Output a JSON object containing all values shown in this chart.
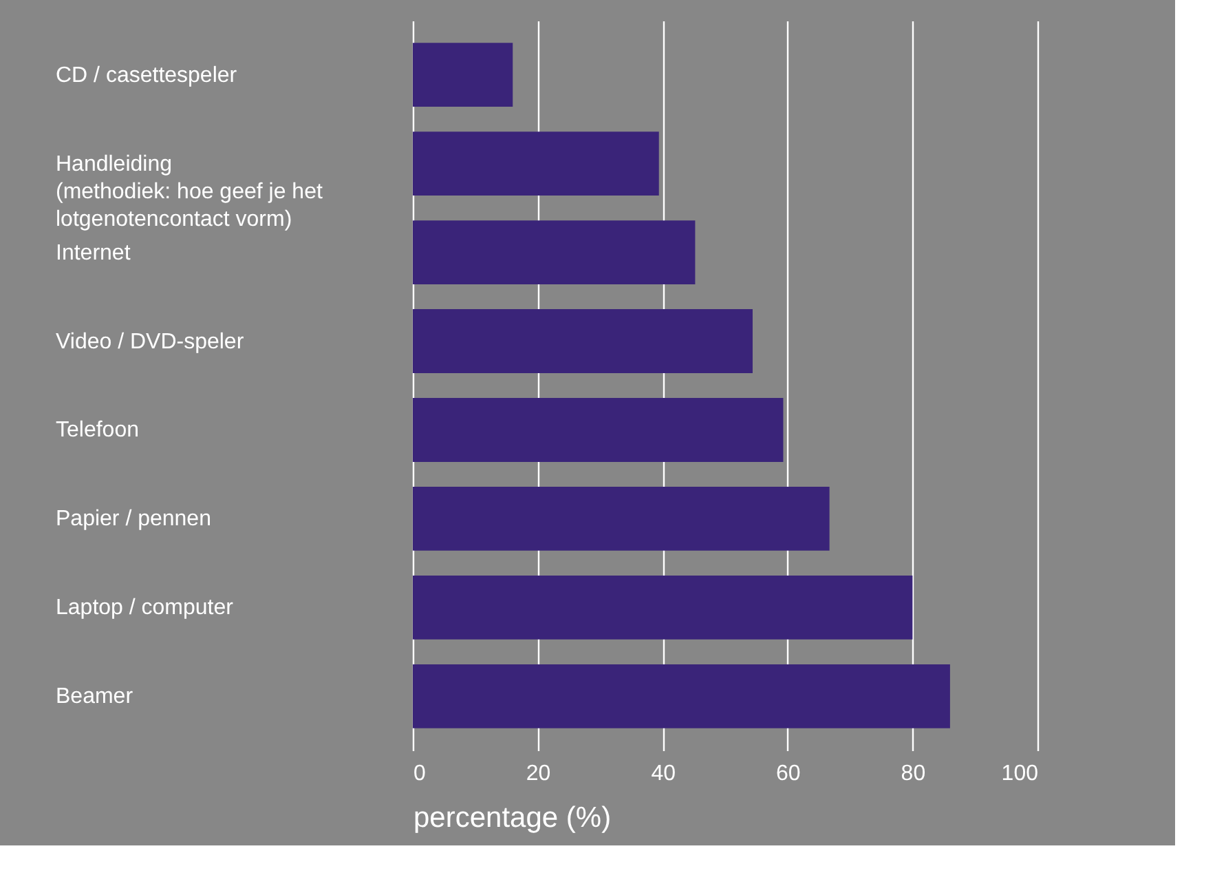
{
  "chart_data": {
    "type": "bar",
    "orientation": "horizontal",
    "xlabel": "percentage (%)",
    "categories": [
      "CD / casettespeler",
      "Handleiding\n(methodiek: hoe geef je het\nlotgenotencontact vorm)",
      "Internet",
      "Video / DVD-speler",
      "Telefoon",
      "Papier / pennen",
      "Laptop / computer",
      "Beamer"
    ],
    "values": [
      16,
      39.4,
      45.2,
      54.4,
      59.3,
      66.7,
      80,
      86
    ],
    "color": "#3a2479",
    "xlim": [
      0,
      100
    ],
    "xticks": [
      0,
      20,
      40,
      60,
      80,
      100
    ],
    "grid": "x"
  }
}
